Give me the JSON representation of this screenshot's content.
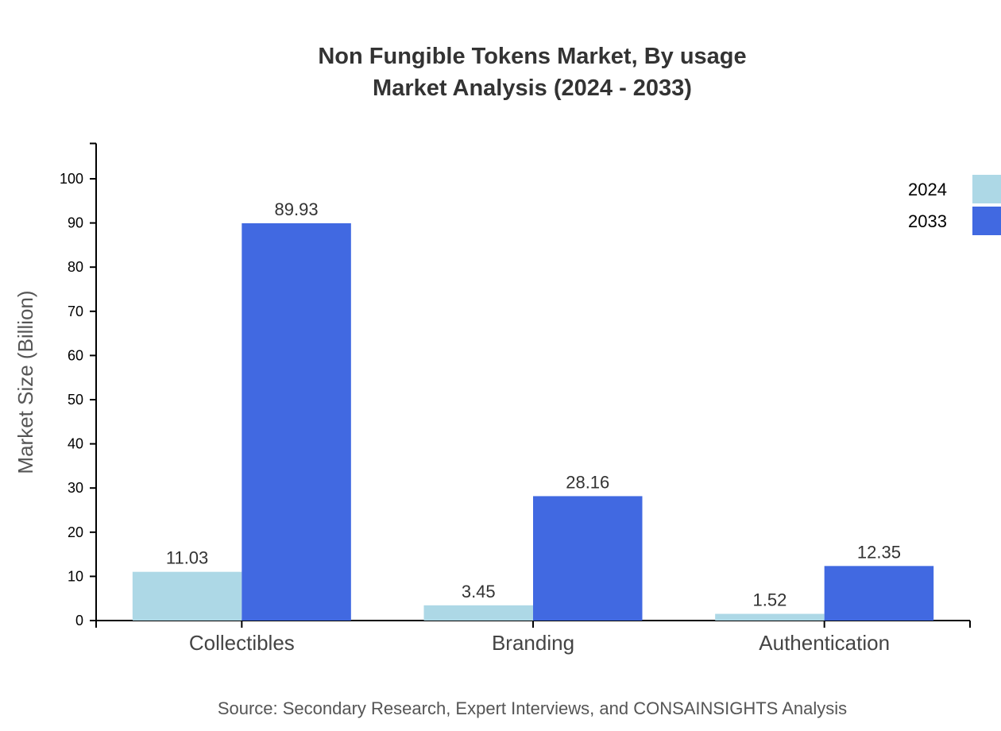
{
  "chart_data": {
    "type": "bar",
    "title_lines": [
      "Non Fungible Tokens Market, By usage",
      "Market Analysis (2024 - 2033)"
    ],
    "xlabel": "",
    "ylabel": "Market Size (Billion)",
    "ylim": [
      0,
      108
    ],
    "yticks": [
      0,
      10,
      20,
      30,
      40,
      50,
      60,
      70,
      80,
      90,
      100
    ],
    "categories": [
      "Collectibles",
      "Branding",
      "Authentication"
    ],
    "series": [
      {
        "name": "2024",
        "color": "#add8e6",
        "values": [
          11.03,
          3.45,
          1.52
        ]
      },
      {
        "name": "2033",
        "color": "#4169e1",
        "values": [
          89.93,
          28.16,
          12.35
        ]
      }
    ],
    "legend_position": "top-right",
    "grid": false,
    "source": "Source: Secondary Research, Expert Interviews, and CONSAINSIGHTS Analysis"
  }
}
